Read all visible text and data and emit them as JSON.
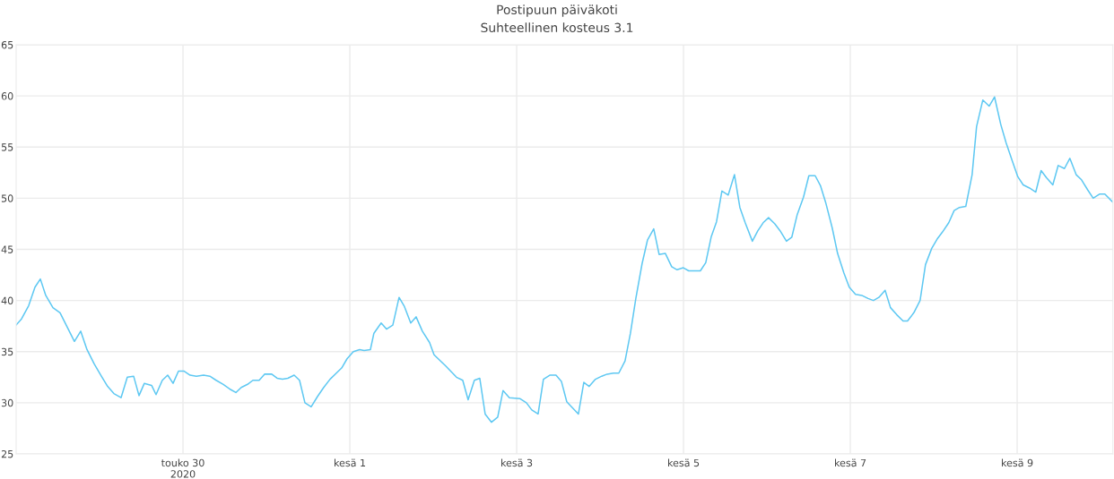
{
  "chart_data": {
    "type": "line",
    "title": "Postipuun päiväkoti",
    "subtitle": "Suhteellinen kosteus 3.1",
    "x": [
      "2020-05-28T00:00",
      "2020-05-28T01:33",
      "2020-05-28T03:37",
      "2020-05-28T05:25",
      "2020-05-28T06:58",
      "2020-05-28T08:31",
      "2020-05-28T10:35",
      "2020-05-28T12:38",
      "2020-05-28T14:42",
      "2020-05-28T16:46",
      "2020-05-28T18:35",
      "2020-05-28T20:23",
      "2020-05-28T22:27",
      "2020-05-29T00:31",
      "2020-05-29T02:19",
      "2020-05-29T04:07",
      "2020-05-29T06:11",
      "2020-05-29T07:59",
      "2020-05-29T09:48",
      "2020-05-29T11:21",
      "2020-05-29T12:53",
      "2020-05-29T14:58",
      "2020-05-29T16:15",
      "2020-05-29T18:03",
      "2020-05-29T19:36",
      "2020-05-29T21:09",
      "2020-05-29T22:42",
      "2020-05-30T00:15",
      "2020-05-30T02:03",
      "2020-05-30T03:52",
      "2020-05-30T05:55",
      "2020-05-30T07:44",
      "2020-05-30T09:32",
      "2020-05-30T11:36",
      "2020-05-30T13:40",
      "2020-05-30T15:13",
      "2020-05-30T16:46",
      "2020-05-30T18:34",
      "2020-05-30T20:07",
      "2020-05-30T21:55",
      "2020-05-30T23:28",
      "2020-05-31T01:32",
      "2020-05-31T03:05",
      "2020-05-31T04:38",
      "2020-05-31T06:10",
      "2020-05-31T07:59",
      "2020-05-31T09:32",
      "2020-05-31T11:05",
      "2020-05-31T12:53",
      "2020-05-31T14:41",
      "2020-05-31T16:29",
      "2020-05-31T18:18",
      "2020-05-31T20:07",
      "2020-05-31T21:39",
      "2020-05-31T23:12",
      "2020-06-01T01:01",
      "2020-06-01T02:49",
      "2020-06-01T04:06",
      "2020-06-01T05:55",
      "2020-06-01T06:56",
      "2020-06-01T09:01",
      "2020-06-01T10:33",
      "2020-06-01T12:22",
      "2020-06-01T14:10",
      "2020-06-01T15:43",
      "2020-06-01T17:31",
      "2020-06-01T19:04",
      "2020-06-01T20:52",
      "2020-06-01T22:56",
      "2020-06-02T00:14",
      "2020-06-02T02:02",
      "2020-06-02T03:35",
      "2020-06-02T06:41",
      "2020-06-02T08:29",
      "2020-06-02T10:02",
      "2020-06-02T11:50",
      "2020-06-02T13:23",
      "2020-06-02T14:56",
      "2020-06-02T16:44",
      "2020-06-02T18:33",
      "2020-06-02T20:05",
      "2020-06-02T21:54",
      "2020-06-03T01:00",
      "2020-06-03T02:48",
      "2020-06-03T04:21",
      "2020-06-03T06:10",
      "2020-06-03T07:42",
      "2020-06-03T09:31",
      "2020-06-03T11:19",
      "2020-06-03T12:52",
      "2020-06-03T14:25",
      "2020-06-03T17:46",
      "2020-06-03T19:19",
      "2020-06-03T20:52",
      "2020-06-03T22:40",
      "2020-06-04T00:28",
      "2020-06-04T02:01",
      "2020-06-04T03:50",
      "2020-06-04T05:23",
      "2020-06-04T07:11",
      "2020-06-04T08:44",
      "2020-06-04T10:17",
      "2020-06-04T12:05",
      "2020-06-04T13:38",
      "2020-06-04T15:26",
      "2020-06-04T16:59",
      "2020-06-04T18:47",
      "2020-06-04T20:36",
      "2020-06-04T22:09",
      "2020-06-04T23:57",
      "2020-06-05T01:30",
      "2020-06-05T04:51",
      "2020-06-05T06:24",
      "2020-06-05T07:57",
      "2020-06-05T09:30",
      "2020-06-05T11:03",
      "2020-06-05T12:51",
      "2020-06-05T14:40",
      "2020-06-05T16:13",
      "2020-06-05T17:45",
      "2020-06-05T19:49",
      "2020-06-05T21:22",
      "2020-06-05T22:55",
      "2020-06-06T00:28",
      "2020-06-06T02:16",
      "2020-06-06T03:49",
      "2020-06-06T05:37",
      "2020-06-06T07:10",
      "2020-06-06T08:43",
      "2020-06-06T10:31",
      "2020-06-06T12:04",
      "2020-06-06T13:53",
      "2020-06-06T15:26",
      "2020-06-06T16:58",
      "2020-06-06T18:47",
      "2020-06-06T20:20",
      "2020-06-06T22:08",
      "2020-06-06T23:41",
      "2020-06-07T01:29",
      "2020-06-07T03:17",
      "2020-06-07T05:06",
      "2020-06-07T06:39",
      "2020-06-07T08:12",
      "2020-06-07T10:00",
      "2020-06-07T11:33",
      "2020-06-07T13:22",
      "2020-06-07T15:10",
      "2020-06-07T16:27",
      "2020-06-07T18:16",
      "2020-06-07T20:04",
      "2020-06-07T21:37",
      "2020-06-07T23:25",
      "2020-06-08T00:58",
      "2020-06-08T02:31",
      "2020-06-08T04:19",
      "2020-06-08T05:52",
      "2020-06-08T07:25",
      "2020-06-08T09:13",
      "2020-06-08T11:02",
      "2020-06-08T12:19",
      "2020-06-08T14:07",
      "2020-06-08T15:56",
      "2020-06-08T17:29",
      "2020-06-08T19:17",
      "2020-06-08T20:50",
      "2020-06-08T22:38",
      "2020-06-09T00:11",
      "2020-06-09T01:44",
      "2020-06-09T03:32",
      "2020-06-09T05:21",
      "2020-06-09T06:53",
      "2020-06-09T08:26",
      "2020-06-09T10:15",
      "2020-06-09T11:48",
      "2020-06-09T13:36",
      "2020-06-09T15:09",
      "2020-06-09T16:58",
      "2020-06-09T18:30",
      "2020-06-09T20:19",
      "2020-06-09T21:52",
      "2020-06-09T23:40",
      "2020-06-10T01:13",
      "2020-06-10T03:32"
    ],
    "series": [
      {
        "color": "#5ec8f2",
        "values": [
          37.6,
          38.2,
          39.5,
          41.3,
          42.1,
          40.5,
          39.3,
          38.8,
          37.4,
          36.0,
          37.0,
          35.2,
          33.8,
          32.6,
          31.6,
          30.9,
          30.5,
          32.5,
          32.6,
          30.7,
          31.9,
          31.7,
          30.8,
          32.2,
          32.7,
          31.9,
          33.1,
          33.1,
          32.7,
          32.6,
          32.7,
          32.6,
          32.2,
          31.8,
          31.3,
          31.0,
          31.5,
          31.8,
          32.2,
          32.2,
          32.8,
          32.8,
          32.4,
          32.3,
          32.4,
          32.7,
          32.2,
          30.0,
          29.6,
          30.6,
          31.5,
          32.3,
          32.9,
          33.4,
          34.3,
          35.0,
          35.2,
          35.1,
          35.2,
          36.8,
          37.8,
          37.2,
          37.6,
          40.3,
          39.4,
          37.8,
          38.4,
          37.0,
          35.9,
          34.7,
          34.1,
          33.6,
          32.5,
          32.2,
          30.3,
          32.2,
          32.4,
          28.9,
          28.1,
          28.6,
          31.2,
          30.5,
          30.4,
          30.0,
          29.3,
          28.9,
          32.3,
          32.7,
          32.7,
          32.1,
          30.1,
          28.9,
          32.0,
          31.6,
          32.3,
          32.6,
          32.8,
          32.9,
          32.9,
          34.1,
          36.8,
          40.2,
          43.6,
          45.9,
          47.0,
          44.5,
          44.6,
          43.3,
          43.0,
          43.2,
          42.9,
          42.9,
          43.7,
          46.2,
          47.7,
          50.7,
          50.3,
          52.3,
          49.1,
          47.6,
          45.8,
          46.8,
          47.6,
          48.1,
          47.5,
          46.8,
          45.8,
          46.2,
          48.4,
          50.1,
          52.2,
          52.2,
          51.2,
          49.5,
          47.1,
          44.6,
          42.7,
          41.3,
          40.6,
          40.5,
          40.2,
          40.0,
          40.3,
          41.0,
          39.3,
          38.6,
          38.0,
          38.0,
          38.8,
          40.0,
          43.5,
          45.1,
          46.0,
          46.7,
          47.6,
          48.8,
          49.1,
          49.2,
          52.3,
          57.0,
          59.6,
          59.0,
          59.9,
          57.2,
          55.4,
          53.6,
          52.1,
          51.3,
          51.0,
          50.6,
          52.7,
          52.0,
          51.3,
          53.2,
          52.9,
          53.9,
          52.3,
          51.8,
          50.8,
          50.0,
          50.4,
          50.4,
          49.6
        ]
      }
    ],
    "xlim": [
      "2020-05-28T00:00",
      "2020-06-10T03:32"
    ],
    "xticks": [
      {
        "value": "2020-05-30",
        "label": "touko 30\n2020"
      },
      {
        "value": "2020-06-01",
        "label": "kesä 1"
      },
      {
        "value": "2020-06-03",
        "label": "kesä 3"
      },
      {
        "value": "2020-06-05",
        "label": "kesä 5"
      },
      {
        "value": "2020-06-07",
        "label": "kesä 7"
      },
      {
        "value": "2020-06-09",
        "label": "kesä 9"
      }
    ],
    "ylim": [
      25,
      65
    ],
    "yticks": [
      25,
      30,
      35,
      40,
      45,
      50,
      55,
      60,
      65
    ],
    "grid": true,
    "marker": "none",
    "line_style": "solid"
  }
}
